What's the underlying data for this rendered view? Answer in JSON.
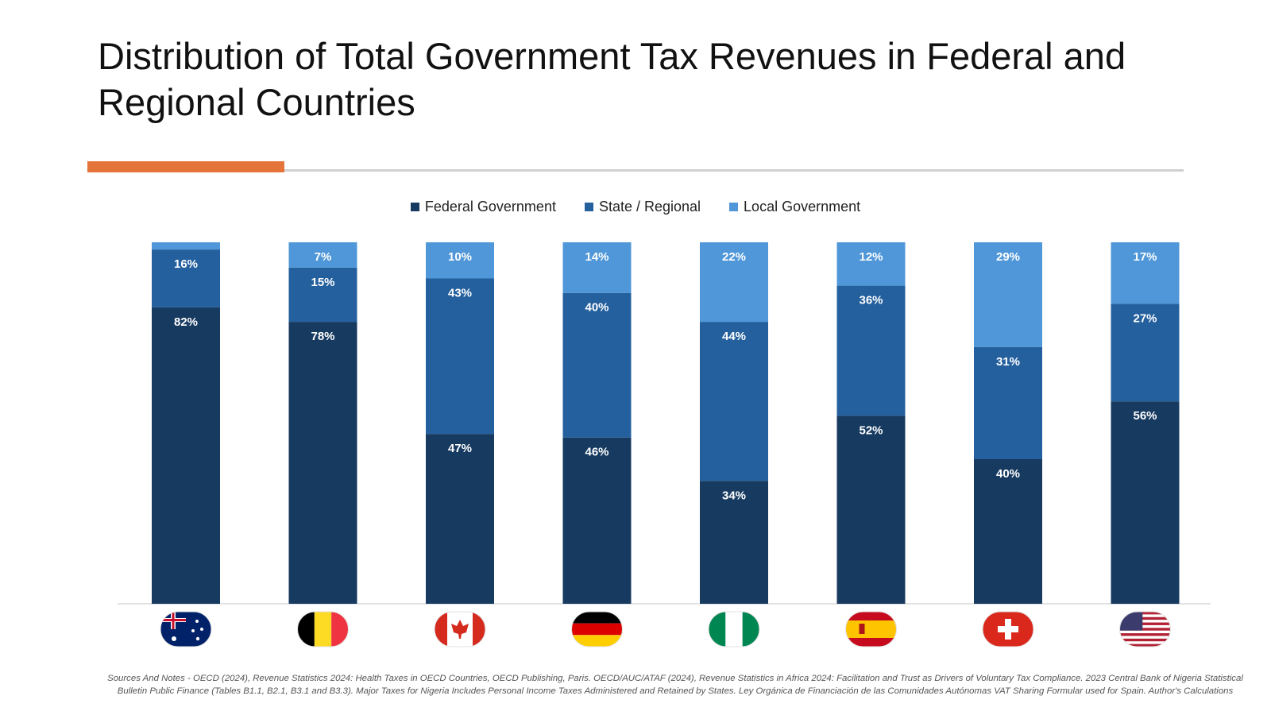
{
  "title": "Distribution of Total Government Tax Revenues in Federal and Regional Countries",
  "colors": {
    "federal": "#173a60",
    "state": "#24609e",
    "local": "#4f97d8",
    "accent": "#e5743a",
    "flag_australia": "#012169",
    "flag_belgium": "#fdda24",
    "flag_canada": "#d52b1e",
    "flag_germany": "#dd0000",
    "flag_nigeria": "#008751",
    "flag_spain": "#c60b1e",
    "flag_switzerland": "#da291c",
    "flag_usa": "#3c3b6e"
  },
  "chart_data": {
    "type": "bar",
    "stacked": true,
    "categories": [
      "Australia",
      "Belgium",
      "Canada",
      "Germany",
      "Nigeria",
      "Spain",
      "Switzerland",
      "United States"
    ],
    "series": [
      {
        "name": "Federal Government",
        "values": [
          82,
          78,
          47,
          46,
          34,
          52,
          40,
          56
        ]
      },
      {
        "name": "State / Regional",
        "values": [
          16,
          15,
          43,
          40,
          44,
          36,
          31,
          27
        ]
      },
      {
        "name": "Local Government",
        "values": [
          2,
          7,
          10,
          14,
          22,
          12,
          29,
          17
        ]
      }
    ],
    "labels": [
      [
        "82%",
        "78%",
        "47%",
        "46%",
        "34%",
        "52%",
        "40%",
        "56%"
      ],
      [
        "16%",
        "15%",
        "43%",
        "40%",
        "44%",
        "36%",
        "31%",
        "27%"
      ],
      [
        "",
        "7%",
        "10%",
        "14%",
        "22%",
        "12%",
        "29%",
        "17%"
      ]
    ],
    "category_icons": [
      "australia-flag-icon",
      "belgium-flag-icon",
      "canada-flag-icon",
      "germany-flag-icon",
      "nigeria-flag-icon",
      "spain-flag-icon",
      "switzerland-flag-icon",
      "usa-flag-icon"
    ],
    "ylim": [
      0,
      100
    ],
    "legend_position": "top-center",
    "grid": false
  },
  "source_note": "Sources And Notes - OECD (2024), Revenue Statistics 2024: Health Taxes in OECD Countries, OECD Publishing, Paris. OECD/AUC/ATAF (2024), Revenue Statistics in Africa 2024: Facilitation and Trust as Drivers of Voluntary Tax Compliance. 2023 Central Bank of Nigeria Statistical Bulletin Public Finance  (Tables B1.1, B2.1, B3.1 and B3.3). Major Taxes for Nigeria Includes Personal Income Taxes Administered and Retained by States. Ley Orgánica de Financiación de las Comunidades Autónomas VAT Sharing Formular used for Spain. Author's Calculations"
}
